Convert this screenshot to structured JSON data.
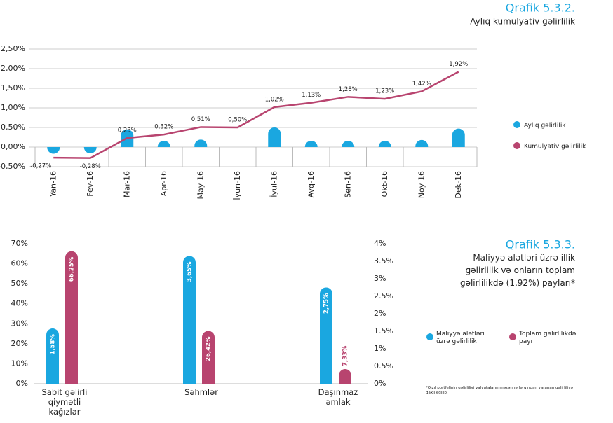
{
  "chart_data": [
    {
      "type": "combo",
      "title": "Qrafik 5.3.2.",
      "subtitle": "Aylıq kumulyativ gəlirlilik",
      "categories": [
        "Yan-16",
        "Fev-16",
        "Mar-16",
        "Apr-16",
        "May-16",
        "İyun-16",
        "İyul-16",
        "Avq-16",
        "Sen-16",
        "Okt-16",
        "Noy-16",
        "Dek-16"
      ],
      "series": [
        {
          "name": "Aylıq gəlirlilik",
          "type": "bar",
          "color": "#1aa7e0",
          "values": [
            -0.17,
            -0.01,
            0.45,
            0.09,
            0.19,
            0,
            0.5,
            0.1,
            0.13,
            0.03,
            0.18,
            0.47
          ]
        },
        {
          "name": "Kumulyativ gəlirlilik",
          "type": "line",
          "color": "#b8446f",
          "values": [
            -0.27,
            -0.28,
            0.23,
            0.32,
            0.51,
            0.5,
            1.02,
            1.13,
            1.28,
            1.23,
            1.42,
            1.92
          ],
          "value_labels": [
            "-0,27%",
            "-0,28%",
            "0,23%",
            "0,32%",
            "0,51%",
            "0,50%",
            "1,02%",
            "1,13%",
            "1,28%",
            "1,23%",
            "1,42%",
            "1,92%"
          ]
        }
      ],
      "ylim": [
        -0.5,
        2.5
      ],
      "yticks": [
        {
          "value": -0.5,
          "label": "-0,50%"
        },
        {
          "value": 0,
          "label": "0,00%"
        },
        {
          "value": 0.5,
          "label": "0,50%"
        },
        {
          "value": 1,
          "label": "1,00%"
        },
        {
          "value": 1.5,
          "label": "1,50%"
        },
        {
          "value": 2,
          "label": "2,00%"
        },
        {
          "value": 2.5,
          "label": "2,50%"
        }
      ],
      "grid": true,
      "legend": "right"
    },
    {
      "type": "bar",
      "title": "Qrafik 5.3.3.",
      "subtitle": "Maliyyə alətləri üzrə illik gəlirlilik və onların toplam gəlirlilikdə (1,92%) payları*",
      "note": "*Qızıl portfelinin gəlirliliyi valyutaların məzənnə fərqindən yaranan gəlirliliyə daxil edilib.",
      "categories": [
        "Sabit gəlirli qiymətli kağızlar",
        "Səhmlər",
        "Daşınmaz əmlak"
      ],
      "series": [
        {
          "name": "Maliyyə alətləri üzrə gəlirlilik",
          "color": "#1aa7e0",
          "axis": "y2",
          "values": [
            1.58,
            3.65,
            2.75
          ],
          "value_labels": [
            "1,58%",
            "3,65%",
            "2,75%"
          ]
        },
        {
          "name": "Toplam gəlirlilikdə payı",
          "color": "#b8446f",
          "values": [
            66.25,
            26.42,
            7.33
          ],
          "value_labels": [
            "66,25%",
            "26,42%",
            "7,33%"
          ]
        }
      ],
      "ylim": [
        0,
        70
      ],
      "yticks": [
        {
          "value": 0,
          "label": "0%"
        },
        {
          "value": 10,
          "label": "10%"
        },
        {
          "value": 20,
          "label": "20%"
        },
        {
          "value": 30,
          "label": "30%"
        },
        {
          "value": 40,
          "label": "40%"
        },
        {
          "value": 50,
          "label": "50%"
        },
        {
          "value": 60,
          "label": "60%"
        },
        {
          "value": 70,
          "label": "70%"
        }
      ],
      "y2lim": [
        0,
        4
      ],
      "y2ticks": [
        {
          "value": 0,
          "label": "0%"
        },
        {
          "value": 0.5,
          "label": "0.5%"
        },
        {
          "value": 1,
          "label": "1%"
        },
        {
          "value": 1.5,
          "label": "1.5%"
        },
        {
          "value": 2,
          "label": "2%"
        },
        {
          "value": 2.5,
          "label": "2.5%"
        },
        {
          "value": 3,
          "label": "3%"
        },
        {
          "value": 3.5,
          "label": "3.5%"
        },
        {
          "value": 4,
          "label": "4%"
        }
      ],
      "legend": "right"
    }
  ]
}
